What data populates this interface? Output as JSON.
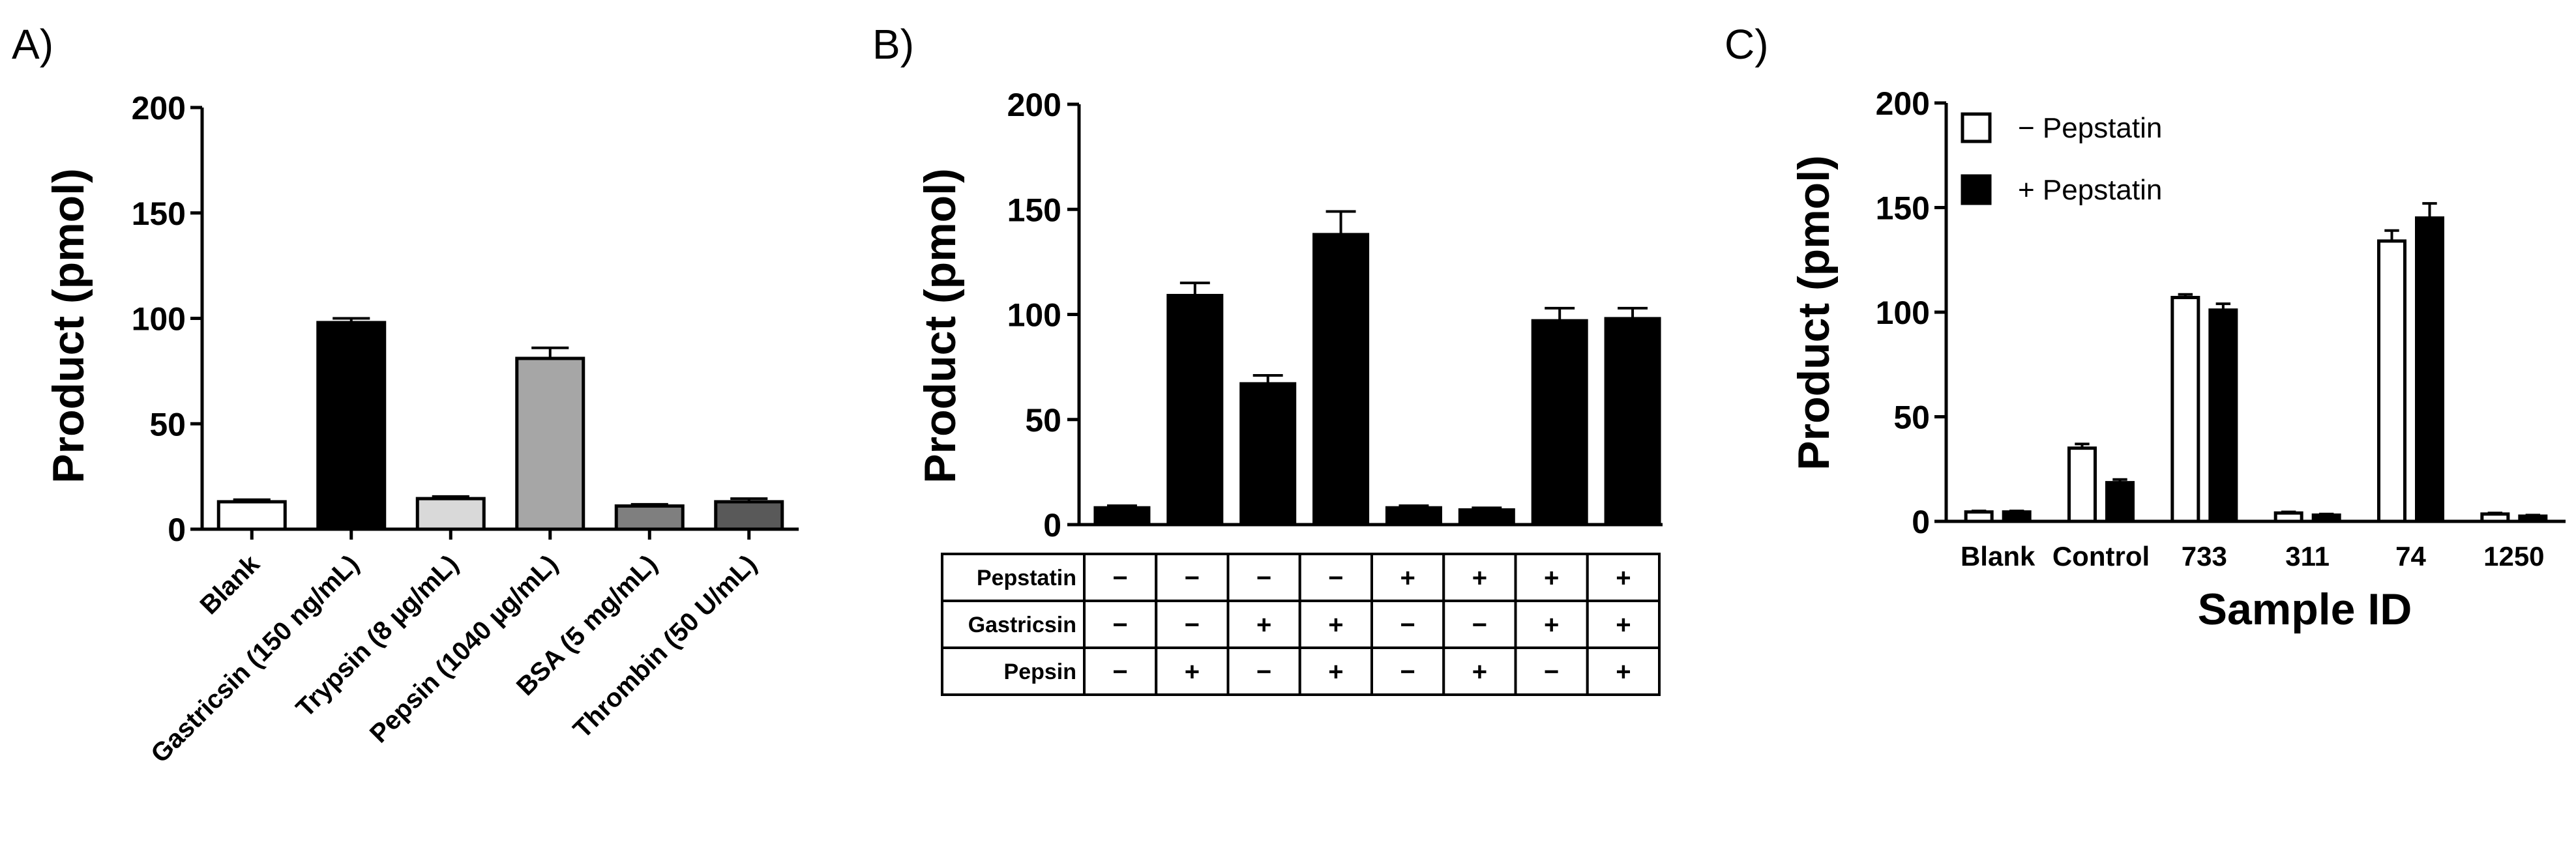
{
  "panels": [
    {
      "id": "A",
      "label": "A)",
      "type": "bar",
      "ylabel": "Product (pmol)",
      "ylim": [
        0,
        200
      ],
      "yticks": [
        0,
        50,
        100,
        150,
        200
      ],
      "categories": [
        "Blank",
        "Gastricsin (150 ng/mL)",
        "Trypsin (8 µg/mL)",
        "Pepsin (1040 µg/mL)",
        "BSA (5 mg/mL)",
        "Thrombin (50 U/mL)"
      ],
      "values": [
        13,
        98,
        14.5,
        81,
        11,
        13
      ],
      "errors": [
        1,
        2,
        1,
        5,
        0.8,
        1.5
      ],
      "colors": [
        "#ffffff",
        "#000000",
        "#d9d9d9",
        "#a6a6a6",
        "#7f7f7f",
        "#595959"
      ]
    },
    {
      "id": "B",
      "label": "B)",
      "type": "bar",
      "ylabel": "Product (pmol)",
      "ylim": [
        0,
        200
      ],
      "yticks": [
        0,
        50,
        100,
        150,
        200
      ],
      "values": [
        8,
        109,
        67,
        138,
        8,
        7,
        97,
        98
      ],
      "errors": [
        1,
        6,
        4,
        11,
        1,
        1,
        6,
        5
      ],
      "colors": [
        "#000000"
      ],
      "table": {
        "rows": [
          {
            "label": "Pepstatin",
            "signs": [
              "−",
              "−",
              "−",
              "−",
              "+",
              "+",
              "+",
              "+"
            ]
          },
          {
            "label": "Gastricsin",
            "signs": [
              "−",
              "−",
              "+",
              "+",
              "−",
              "−",
              "+",
              "+"
            ]
          },
          {
            "label": "Pepsin",
            "signs": [
              "−",
              "+",
              "−",
              "+",
              "−",
              "+",
              "−",
              "+"
            ]
          }
        ]
      }
    },
    {
      "id": "C",
      "label": "C)",
      "type": "bar",
      "ylabel": "Product (pmol)",
      "xlabel": "Sample ID",
      "ylim": [
        0,
        200
      ],
      "yticks": [
        0,
        50,
        100,
        150,
        200
      ],
      "categories": [
        "Blank",
        "Control",
        "733",
        "311",
        "74",
        "1250"
      ],
      "series": [
        {
          "name": "− Pepstatin",
          "values": [
            4.5,
            35,
            107,
            4,
            134,
            3.5
          ],
          "errors": [
            0.5,
            2,
            1.5,
            0.5,
            5,
            0.5
          ],
          "color": "#ffffff"
        },
        {
          "name": "+ Pepstatin",
          "values": [
            4.5,
            18.5,
            101,
            3,
            145,
            2.5
          ],
          "errors": [
            0.5,
            1.5,
            3,
            0.5,
            7,
            0.5
          ],
          "color": "#000000"
        }
      ],
      "legend_position": "top-left"
    }
  ]
}
